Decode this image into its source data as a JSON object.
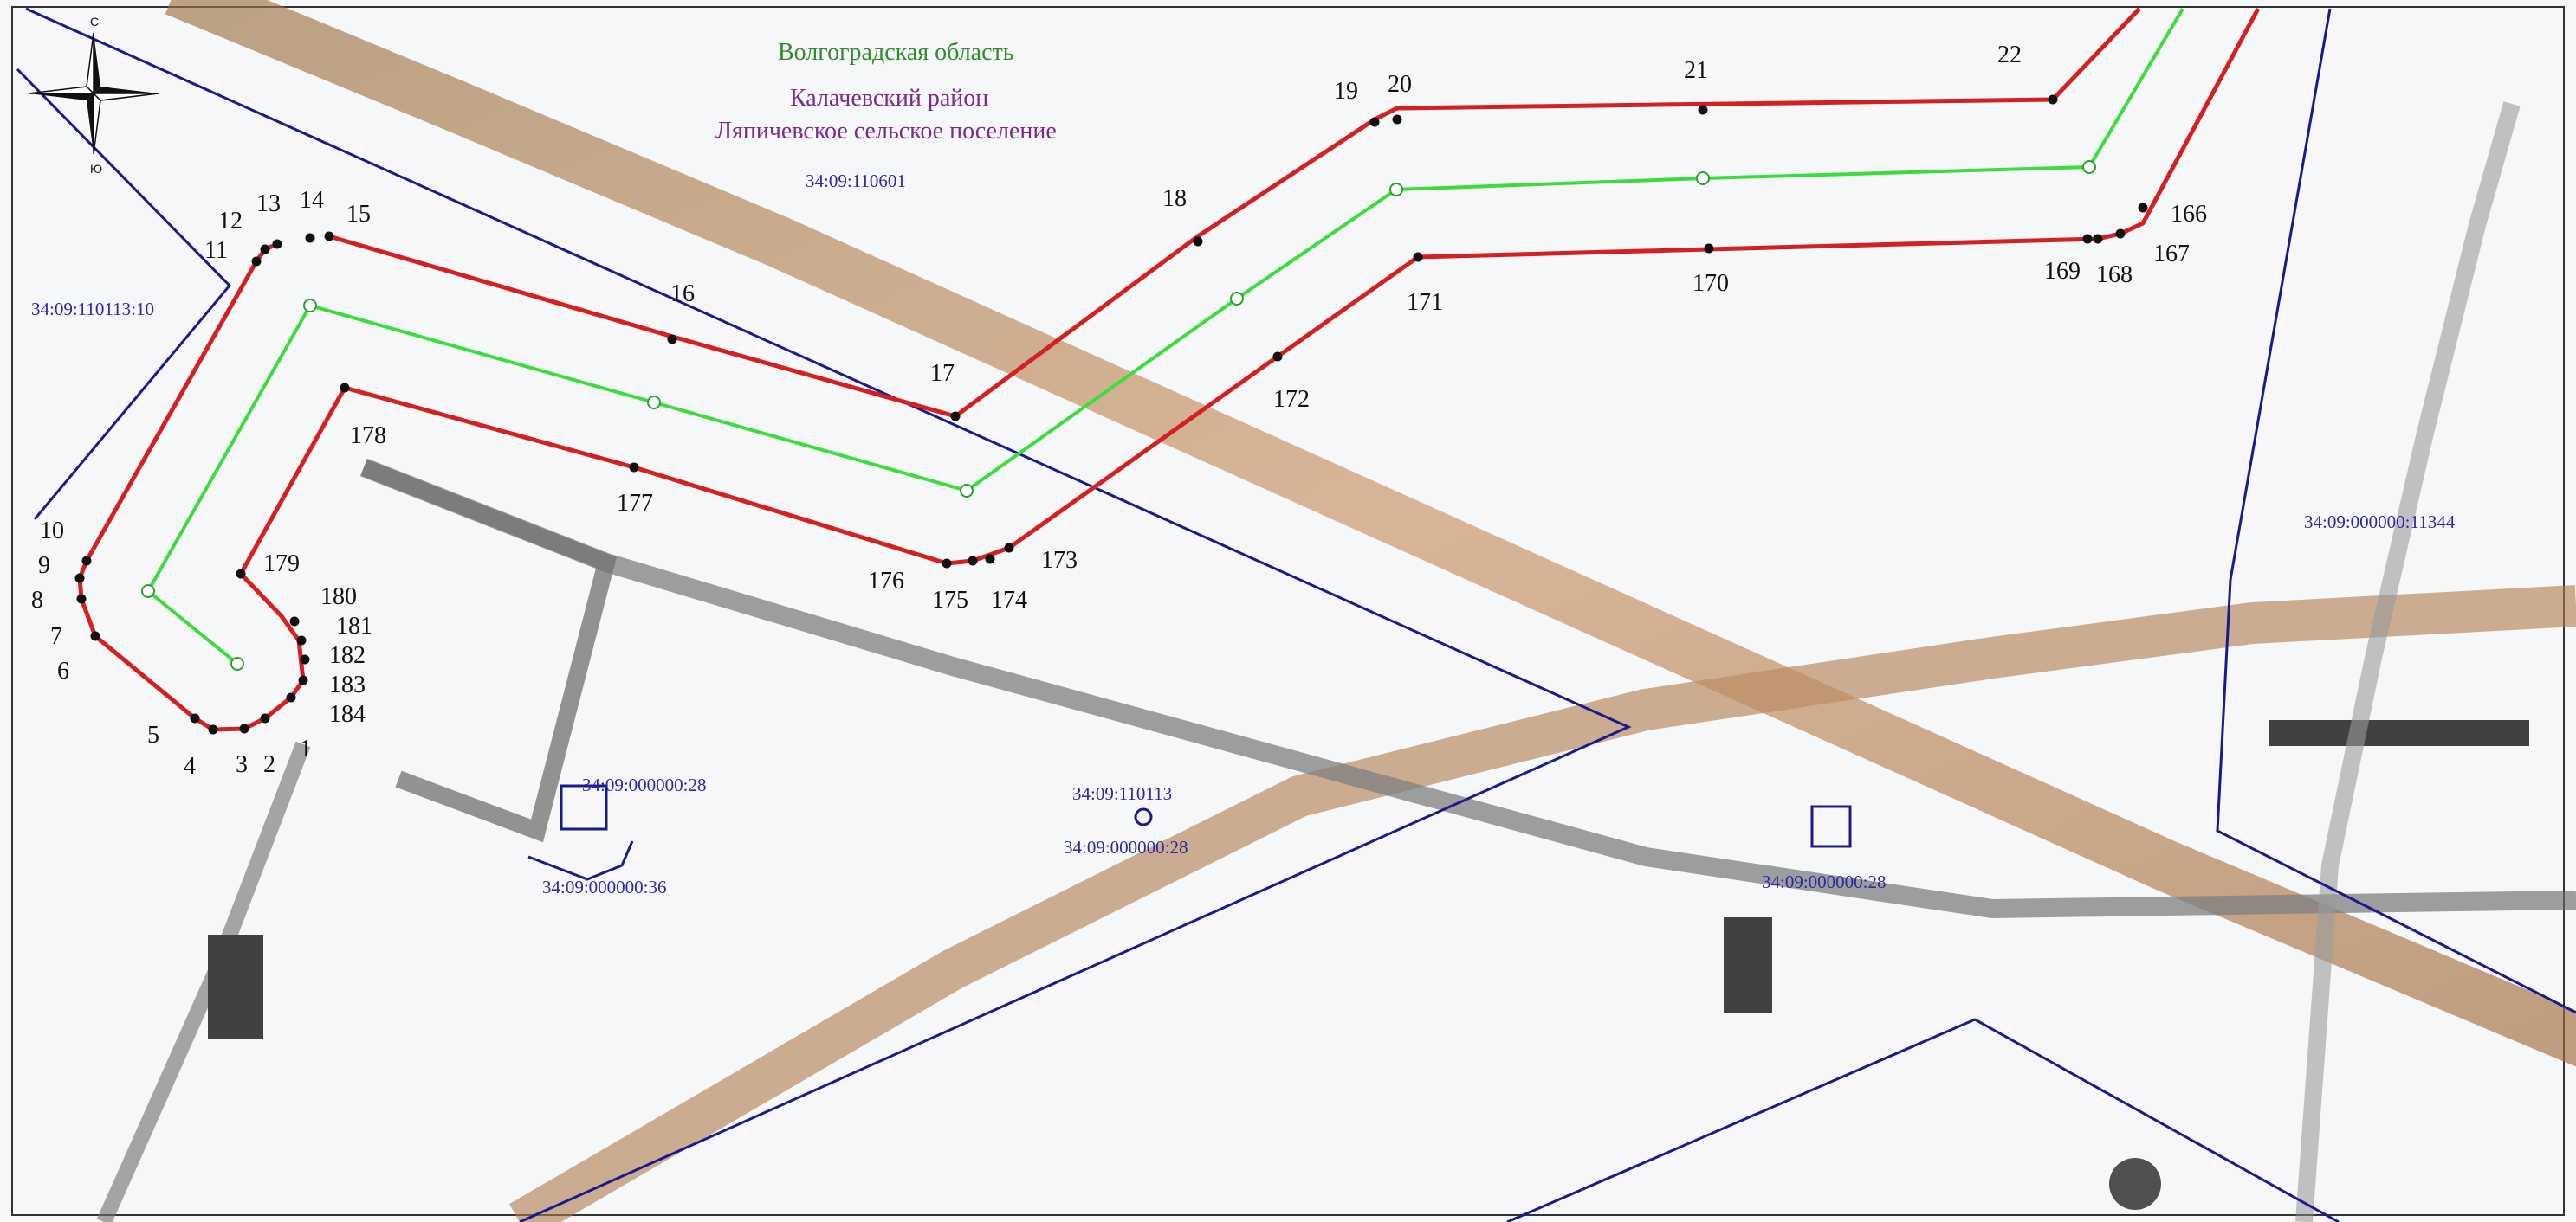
{
  "compass": {
    "north": "С",
    "south": "Ю"
  },
  "admin_labels": [
    {
      "id": "region",
      "text": "Волгоградская область",
      "color": "#2e8b2e"
    },
    {
      "id": "district",
      "text": "Калачевский район",
      "color": "#7a2a8a"
    },
    {
      "id": "settlement",
      "text": "Ляпичевское сельское поселение",
      "color": "#7a2a8a"
    }
  ],
  "cadastral_labels": [
    {
      "id": "c1",
      "text": "34:09:110601"
    },
    {
      "id": "c2",
      "text": "34:09:110113:10"
    },
    {
      "id": "c3",
      "text": "34:09:000000:11344"
    },
    {
      "id": "c4",
      "text": "34:09:000000:28"
    },
    {
      "id": "c5",
      "text": "34:09:000000:36"
    },
    {
      "id": "c6",
      "text": "34:09:110113"
    },
    {
      "id": "c7",
      "text": "34:09:000000:28"
    },
    {
      "id": "c8",
      "text": "34:09:000000:28"
    }
  ],
  "point_labels": [
    "1",
    "2",
    "3",
    "4",
    "5",
    "6",
    "7",
    "8",
    "9",
    "10",
    "11",
    "12",
    "13",
    "14",
    "15",
    "16",
    "17",
    "18",
    "19",
    "20",
    "21",
    "22",
    "166",
    "167",
    "168",
    "169",
    "170",
    "171",
    "172",
    "173",
    "174",
    "175",
    "176",
    "177",
    "178",
    "179",
    "180",
    "181",
    "182",
    "183",
    "184"
  ],
  "colors": {
    "boundary_red": "#d42020",
    "axis_green": "#3ddc3d",
    "cadastral_blue": "#1a1a8c",
    "cadastral_text": "#2a2aa0",
    "road": "#b87c50",
    "track": "#555555"
  }
}
